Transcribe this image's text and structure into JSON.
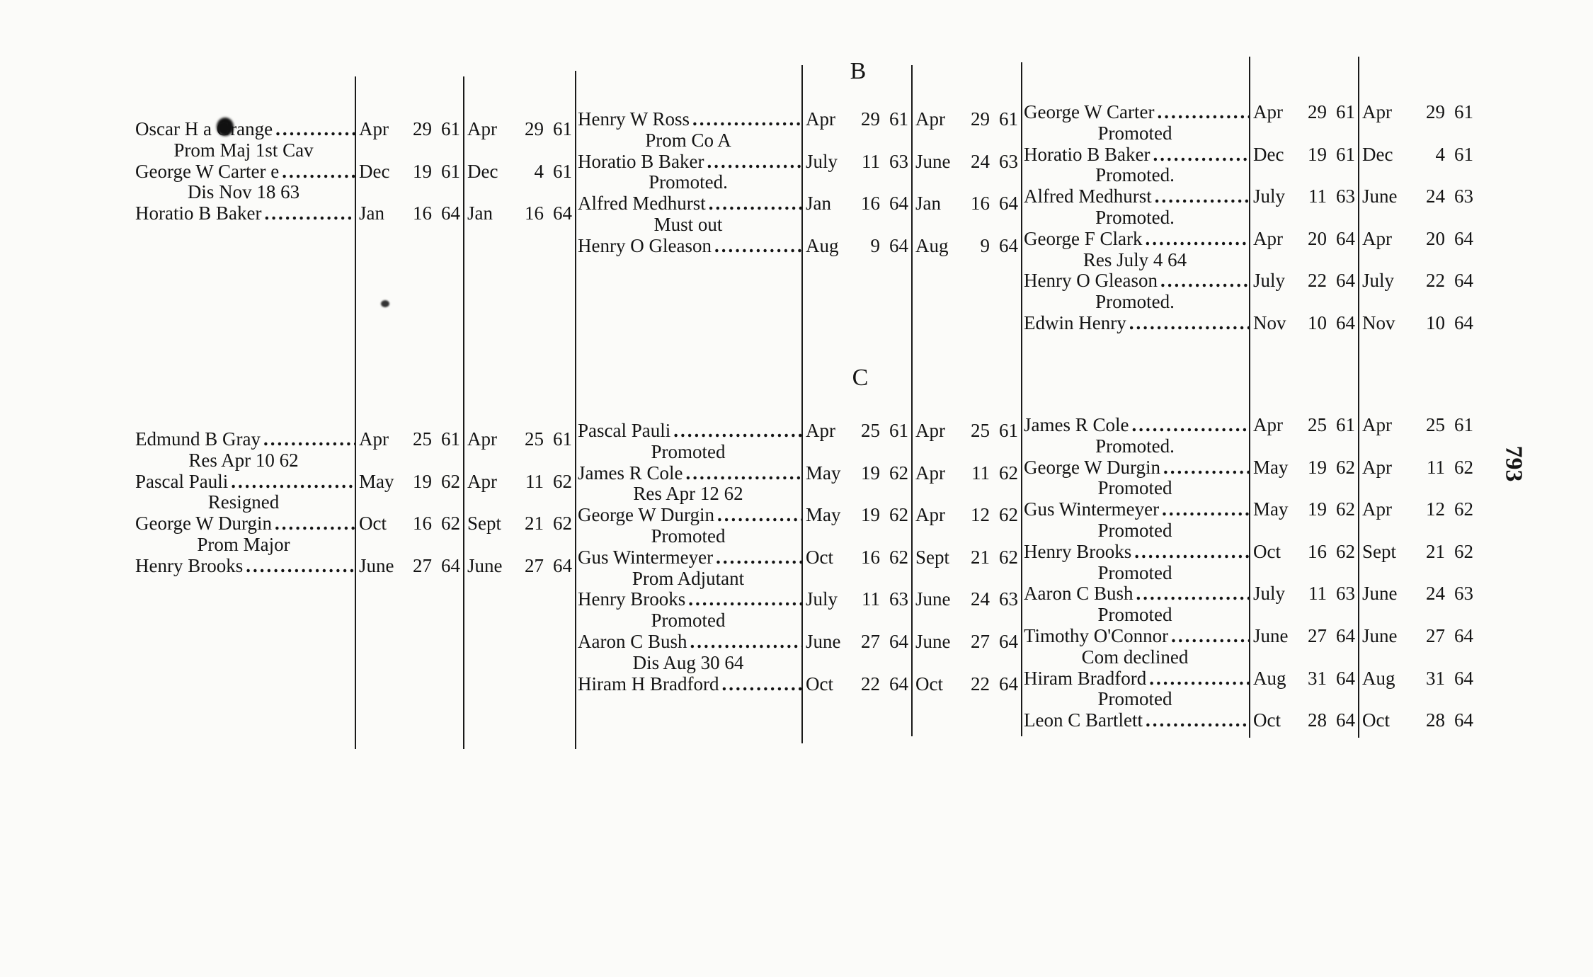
{
  "page_number": "793",
  "sections": [
    {
      "letter": "B",
      "groups": [
        {
          "entries": [
            {
              "name": "Oscar H a Grange",
              "date1": [
                "Apr",
                "29",
                "61"
              ],
              "date2": [
                "Apr",
                "29",
                "61"
              ],
              "note": "Prom Maj 1st Cav"
            },
            {
              "name": "George W Carter e",
              "date1": [
                "Dec",
                "19",
                "61"
              ],
              "date2": [
                "Dec",
                "4",
                "61"
              ],
              "note": "Dis Nov 18 63"
            },
            {
              "name": "Horatio B Baker",
              "date1": [
                "Jan",
                "16",
                "64"
              ],
              "date2": [
                "Jan",
                "16",
                "64"
              ],
              "note": ""
            }
          ]
        },
        {
          "entries": [
            {
              "name": "Henry W Ross",
              "date1": [
                "Apr",
                "29",
                "61"
              ],
              "date2": [
                "Apr",
                "29",
                "61"
              ],
              "note": "Prom Co A"
            },
            {
              "name": "Horatio B Baker",
              "date1": [
                "July",
                "11",
                "63"
              ],
              "date2": [
                "June",
                "24",
                "63"
              ],
              "note": "Promoted."
            },
            {
              "name": "Alfred Medhurst",
              "date1": [
                "Jan",
                "16",
                "64"
              ],
              "date2": [
                "Jan",
                "16",
                "64"
              ],
              "note": "Must out"
            },
            {
              "name": "Henry O Gleason",
              "date1": [
                "Aug",
                "9",
                "64"
              ],
              "date2": [
                "Aug",
                "9",
                "64"
              ],
              "note": ""
            }
          ]
        },
        {
          "entries": [
            {
              "name": "George W Carter",
              "date1": [
                "Apr",
                "29",
                "61"
              ],
              "date2": [
                "Apr",
                "29",
                "61"
              ],
              "note": "Promoted"
            },
            {
              "name": "Horatio B Baker",
              "date1": [
                "Dec",
                "19",
                "61"
              ],
              "date2": [
                "Dec",
                "4",
                "61"
              ],
              "note": "Promoted."
            },
            {
              "name": "Alfred Medhurst",
              "date1": [
                "July",
                "11",
                "63"
              ],
              "date2": [
                "June",
                "24",
                "63"
              ],
              "note": "Promoted."
            },
            {
              "name": "George F Clark",
              "date1": [
                "Apr",
                "20",
                "64"
              ],
              "date2": [
                "Apr",
                "20",
                "64"
              ],
              "note": "Res July 4 64"
            },
            {
              "name": "Henry O Gleason",
              "date1": [
                "July",
                "22",
                "64"
              ],
              "date2": [
                "July",
                "22",
                "64"
              ],
              "note": "Promoted."
            },
            {
              "name": "Edwin Henry",
              "date1": [
                "Nov",
                "10",
                "64"
              ],
              "date2": [
                "Nov",
                "10",
                "64"
              ],
              "note": ""
            }
          ]
        }
      ]
    },
    {
      "letter": "C",
      "groups": [
        {
          "entries": [
            {
              "name": "Edmund B Gray",
              "date1": [
                "Apr",
                "25",
                "61"
              ],
              "date2": [
                "Apr",
                "25",
                "61"
              ],
              "note": "Res Apr 10 62"
            },
            {
              "name": "Pascal Pauli",
              "date1": [
                "May",
                "19",
                "62"
              ],
              "date2": [
                "Apr",
                "11",
                "62"
              ],
              "note": "Resigned"
            },
            {
              "name": "George W Durgin",
              "date1": [
                "Oct",
                "16",
                "62"
              ],
              "date2": [
                "Sept",
                "21",
                "62"
              ],
              "note": "Prom Major"
            },
            {
              "name": "Henry Brooks",
              "date1": [
                "June",
                "27",
                "64"
              ],
              "date2": [
                "June",
                "27",
                "64"
              ],
              "note": ""
            }
          ]
        },
        {
          "entries": [
            {
              "name": "Pascal Pauli",
              "date1": [
                "Apr",
                "25",
                "61"
              ],
              "date2": [
                "Apr",
                "25",
                "61"
              ],
              "note": "Promoted"
            },
            {
              "name": "James R Cole",
              "date1": [
                "May",
                "19",
                "62"
              ],
              "date2": [
                "Apr",
                "11",
                "62"
              ],
              "note": "Res Apr 12 62"
            },
            {
              "name": "George W Durgin",
              "date1": [
                "May",
                "19",
                "62"
              ],
              "date2": [
                "Apr",
                "12",
                "62"
              ],
              "note": "Promoted"
            },
            {
              "name": "Gus Wintermeyer",
              "date1": [
                "Oct",
                "16",
                "62"
              ],
              "date2": [
                "Sept",
                "21",
                "62"
              ],
              "note": "Prom Adjutant"
            },
            {
              "name": "Henry Brooks",
              "date1": [
                "July",
                "11",
                "63"
              ],
              "date2": [
                "June",
                "24",
                "63"
              ],
              "note": "Promoted"
            },
            {
              "name": "Aaron C Bush",
              "date1": [
                "June",
                "27",
                "64"
              ],
              "date2": [
                "June",
                "27",
                "64"
              ],
              "note": "Dis Aug 30 64"
            },
            {
              "name": "Hiram H Bradford",
              "date1": [
                "Oct",
                "22",
                "64"
              ],
              "date2": [
                "Oct",
                "22",
                "64"
              ],
              "note": ""
            }
          ]
        },
        {
          "entries": [
            {
              "name": "James R Cole",
              "date1": [
                "Apr",
                "25",
                "61"
              ],
              "date2": [
                "Apr",
                "25",
                "61"
              ],
              "note": "Promoted."
            },
            {
              "name": "George W Durgin",
              "date1": [
                "May",
                "19",
                "62"
              ],
              "date2": [
                "Apr",
                "11",
                "62"
              ],
              "note": "Promoted"
            },
            {
              "name": "Gus Wintermeyer",
              "date1": [
                "May",
                "19",
                "62"
              ],
              "date2": [
                "Apr",
                "12",
                "62"
              ],
              "note": "Promoted"
            },
            {
              "name": "Henry Brooks",
              "date1": [
                "Oct",
                "16",
                "62"
              ],
              "date2": [
                "Sept",
                "21",
                "62"
              ],
              "note": "Promoted"
            },
            {
              "name": "Aaron C Bush",
              "date1": [
                "July",
                "11",
                "63"
              ],
              "date2": [
                "June",
                "24",
                "63"
              ],
              "note": "Promoted"
            },
            {
              "name": "Timothy O'Connor",
              "date1": [
                "June",
                "27",
                "64"
              ],
              "date2": [
                "June",
                "27",
                "64"
              ],
              "note": "Com declined"
            },
            {
              "name": "Hiram Bradford",
              "date1": [
                "Aug",
                "31",
                "64"
              ],
              "date2": [
                "Aug",
                "31",
                "64"
              ],
              "note": "Promoted"
            },
            {
              "name": "Leon C Bartlett",
              "date1": [
                "Oct",
                "28",
                "64"
              ],
              "date2": [
                "Oct",
                "28",
                "64"
              ],
              "note": ""
            }
          ]
        }
      ]
    }
  ]
}
